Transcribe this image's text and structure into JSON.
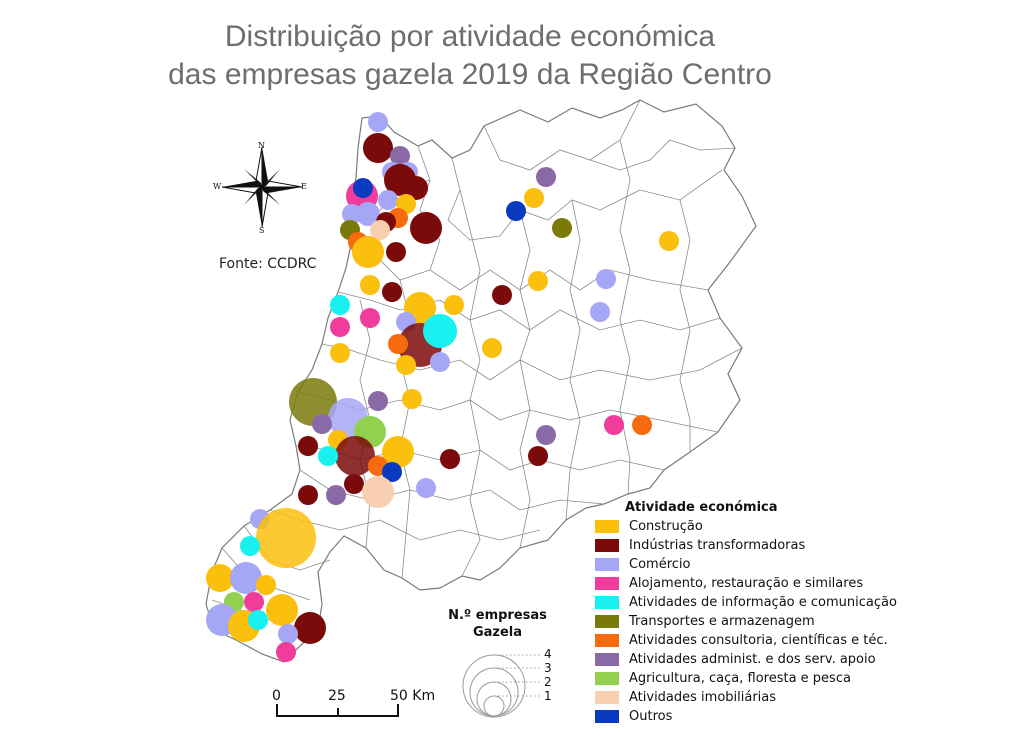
{
  "title": {
    "line1": "Distribuição por atividade económica",
    "line2": "das empresas gazela 2019 da Região Centro"
  },
  "source": "Fonte: CCDRC",
  "compass": {
    "n": "N",
    "s": "S",
    "e": "E",
    "w": "W"
  },
  "scale_bar": {
    "labels": [
      "0",
      "25",
      "50 Km"
    ]
  },
  "legend": {
    "title": "Atividade económica",
    "items": [
      {
        "label": "Construção",
        "color": "#fbbf0e"
      },
      {
        "label": "Indústrias transformadoras",
        "color": "#7b0a0a"
      },
      {
        "label": "Comércio",
        "color": "#a6a6f6"
      },
      {
        "label": "Alojamento, restauração e similares",
        "color": "#f03c9a"
      },
      {
        "label": "Atividades de informação e comunicação",
        "color": "#19f0f0"
      },
      {
        "label": "Transportes e armazenagem",
        "color": "#7a7a0a"
      },
      {
        "label": "Atividades consultoria, científicas e téc.",
        "color": "#f66a10"
      },
      {
        "label": "Atividades administ. e dos serv. apoio",
        "color": "#8a6aa6"
      },
      {
        "label": "Agricultura, caça, floresta e pesca",
        "color": "#92d050"
      },
      {
        "label": "Atividades imobiliárias",
        "color": "#f8cfb0"
      },
      {
        "label": "Outros",
        "color": "#0a3ac0"
      }
    ]
  },
  "size_legend": {
    "title_line1": "N.º empresas",
    "title_line2": "Gazela",
    "values": [
      "4",
      "3",
      "2",
      "1"
    ]
  }
}
